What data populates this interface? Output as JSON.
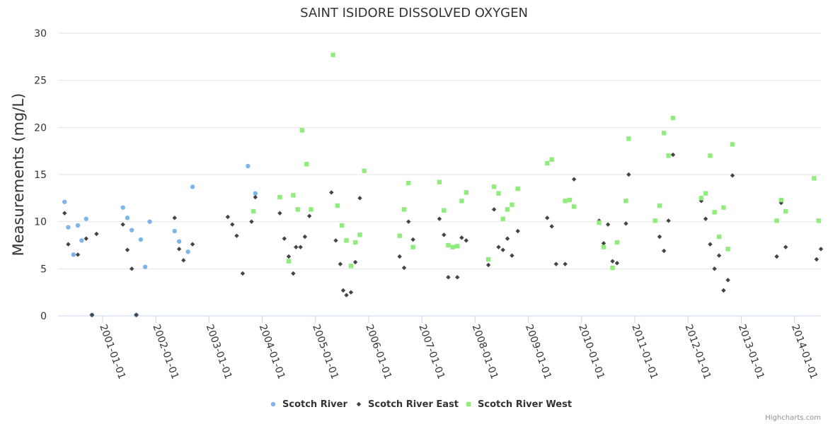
{
  "chart_data": {
    "type": "scatter",
    "title": "SAINT ISIDORE DISSOLVED OXYGEN",
    "ylabel": "Measurements (mg/L)",
    "xlabel": "",
    "ylim": [
      0,
      30
    ],
    "yticks": [
      "0",
      "5",
      "10",
      "15",
      "20",
      "25",
      "30"
    ],
    "xlim": [
      "2000-03-01",
      "2014-07-01"
    ],
    "xticks": [
      "2001-01-01",
      "2002-01-01",
      "2003-01-01",
      "2004-01-01",
      "2005-01-01",
      "2006-01-01",
      "2007-01-01",
      "2008-01-01",
      "2009-01-01",
      "2010-01-01",
      "2011-01-01",
      "2012-01-01",
      "2013-01-01",
      "2014-01-01"
    ],
    "grid": "horizontal",
    "legend": "bottom-center",
    "series": [
      {
        "name": "Scotch River",
        "color": "#7cb5ec",
        "marker": "circle",
        "points": [
          [
            "2000-04-15",
            12.1
          ],
          [
            "2000-05-10",
            9.4
          ],
          [
            "2000-06-15",
            6.5
          ],
          [
            "2000-07-15",
            9.6
          ],
          [
            "2000-08-10",
            8.0
          ],
          [
            "2000-09-10",
            10.3
          ],
          [
            "2000-10-20",
            0.1
          ],
          [
            "2001-05-20",
            11.5
          ],
          [
            "2001-06-20",
            10.4
          ],
          [
            "2001-07-20",
            9.1
          ],
          [
            "2001-08-20",
            0.1
          ],
          [
            "2001-09-20",
            8.1
          ],
          [
            "2001-10-20",
            5.2
          ],
          [
            "2001-11-20",
            10.0
          ],
          [
            "2002-05-10",
            9.0
          ],
          [
            "2002-06-10",
            7.9
          ],
          [
            "2002-08-10",
            6.8
          ],
          [
            "2002-09-10",
            13.7
          ],
          [
            "2003-09-25",
            15.9
          ],
          [
            "2003-11-15",
            13.0
          ]
        ]
      },
      {
        "name": "Scotch River East",
        "color": "#434348",
        "marker": "diamond",
        "points": [
          [
            "2000-04-15",
            10.9
          ],
          [
            "2000-05-10",
            7.6
          ],
          [
            "2000-07-15",
            6.5
          ],
          [
            "2000-09-10",
            8.2
          ],
          [
            "2000-10-20",
            0.1
          ],
          [
            "2000-11-20",
            8.7
          ],
          [
            "2001-05-20",
            9.7
          ],
          [
            "2001-06-20",
            7.0
          ],
          [
            "2001-07-20",
            5.0
          ],
          [
            "2001-08-20",
            0.1
          ],
          [
            "2002-05-10",
            10.4
          ],
          [
            "2002-06-10",
            7.1
          ],
          [
            "2002-07-10",
            5.9
          ],
          [
            "2002-09-10",
            7.6
          ],
          [
            "2003-05-10",
            10.5
          ],
          [
            "2003-06-10",
            9.7
          ],
          [
            "2003-07-10",
            8.5
          ],
          [
            "2003-08-20",
            4.5
          ],
          [
            "2003-10-20",
            10.0
          ],
          [
            "2003-11-15",
            12.6
          ],
          [
            "2004-05-01",
            10.9
          ],
          [
            "2004-06-01",
            8.2
          ],
          [
            "2004-07-01",
            6.3
          ],
          [
            "2004-08-01",
            4.5
          ],
          [
            "2004-08-20",
            7.3
          ],
          [
            "2004-09-20",
            7.3
          ],
          [
            "2004-10-20",
            8.4
          ],
          [
            "2004-11-20",
            10.6
          ],
          [
            "2005-04-20",
            13.1
          ],
          [
            "2005-05-20",
            8.0
          ],
          [
            "2005-06-20",
            5.5
          ],
          [
            "2005-07-10",
            2.7
          ],
          [
            "2005-08-01",
            2.2
          ],
          [
            "2005-09-01",
            2.5
          ],
          [
            "2005-10-01",
            5.7
          ],
          [
            "2005-11-01",
            12.5
          ],
          [
            "2006-08-01",
            6.3
          ],
          [
            "2006-09-01",
            5.1
          ],
          [
            "2006-10-01",
            10.0
          ],
          [
            "2006-11-01",
            8.1
          ],
          [
            "2007-05-01",
            10.3
          ],
          [
            "2007-06-01",
            8.6
          ],
          [
            "2007-07-01",
            4.1
          ],
          [
            "2007-09-01",
            4.1
          ],
          [
            "2007-10-01",
            8.3
          ],
          [
            "2007-11-01",
            8.0
          ],
          [
            "2008-04-01",
            5.4
          ],
          [
            "2008-05-10",
            11.3
          ],
          [
            "2008-06-10",
            7.3
          ],
          [
            "2008-07-10",
            7.0
          ],
          [
            "2008-08-10",
            8.2
          ],
          [
            "2008-09-10",
            6.4
          ],
          [
            "2008-10-20",
            9.0
          ],
          [
            "2009-05-10",
            10.4
          ],
          [
            "2009-06-10",
            9.5
          ],
          [
            "2009-07-10",
            5.5
          ],
          [
            "2009-09-10",
            5.5
          ],
          [
            "2009-11-10",
            14.5
          ],
          [
            "2010-05-01",
            10.1
          ],
          [
            "2010-06-01",
            7.7
          ],
          [
            "2010-07-01",
            9.7
          ],
          [
            "2010-08-01",
            5.8
          ],
          [
            "2010-09-01",
            5.6
          ],
          [
            "2010-11-01",
            9.8
          ],
          [
            "2010-11-20",
            15.0
          ],
          [
            "2011-06-20",
            8.4
          ],
          [
            "2011-07-20",
            6.9
          ],
          [
            "2011-08-20",
            10.1
          ],
          [
            "2011-09-20",
            17.1
          ],
          [
            "2012-04-01",
            12.2
          ],
          [
            "2012-05-01",
            10.3
          ],
          [
            "2012-06-01",
            7.6
          ],
          [
            "2012-07-01",
            5.0
          ],
          [
            "2012-08-01",
            6.4
          ],
          [
            "2012-09-01",
            2.7
          ],
          [
            "2012-10-01",
            3.8
          ],
          [
            "2012-11-01",
            14.9
          ],
          [
            "2013-09-01",
            6.3
          ],
          [
            "2013-10-01",
            12.0
          ],
          [
            "2013-11-01",
            7.3
          ],
          [
            "2014-06-01",
            6.0
          ],
          [
            "2014-07-01",
            7.1
          ]
        ]
      },
      {
        "name": "Scotch River West",
        "color": "#90ed7d",
        "marker": "square",
        "points": [
          [
            "2003-11-01",
            11.1
          ],
          [
            "2004-05-01",
            12.6
          ],
          [
            "2004-07-01",
            5.8
          ],
          [
            "2004-08-01",
            12.8
          ],
          [
            "2004-09-01",
            11.3
          ],
          [
            "2004-10-01",
            19.7
          ],
          [
            "2004-11-01",
            16.1
          ],
          [
            "2004-12-01",
            11.3
          ],
          [
            "2005-05-01",
            27.7
          ],
          [
            "2005-06-01",
            11.7
          ],
          [
            "2005-07-01",
            9.6
          ],
          [
            "2005-08-01",
            8.0
          ],
          [
            "2005-09-01",
            5.3
          ],
          [
            "2005-10-01",
            7.8
          ],
          [
            "2005-11-01",
            8.6
          ],
          [
            "2005-12-01",
            15.4
          ],
          [
            "2006-08-01",
            8.5
          ],
          [
            "2006-09-01",
            11.3
          ],
          [
            "2006-10-01",
            14.1
          ],
          [
            "2006-11-01",
            7.3
          ],
          [
            "2007-05-01",
            14.2
          ],
          [
            "2007-06-01",
            11.2
          ],
          [
            "2007-07-01",
            7.5
          ],
          [
            "2007-08-01",
            7.3
          ],
          [
            "2007-09-01",
            7.4
          ],
          [
            "2007-10-01",
            12.2
          ],
          [
            "2007-11-01",
            13.1
          ],
          [
            "2008-04-01",
            6.0
          ],
          [
            "2008-05-10",
            13.7
          ],
          [
            "2008-06-10",
            13.0
          ],
          [
            "2008-07-10",
            10.3
          ],
          [
            "2008-08-10",
            11.3
          ],
          [
            "2008-09-10",
            11.8
          ],
          [
            "2008-10-20",
            13.5
          ],
          [
            "2009-05-10",
            16.2
          ],
          [
            "2009-06-10",
            16.6
          ],
          [
            "2009-09-10",
            12.2
          ],
          [
            "2009-10-10",
            12.3
          ],
          [
            "2009-11-10",
            11.6
          ],
          [
            "2010-05-01",
            9.9
          ],
          [
            "2010-06-01",
            7.3
          ],
          [
            "2010-08-01",
            5.1
          ],
          [
            "2010-09-01",
            7.8
          ],
          [
            "2010-11-01",
            12.2
          ],
          [
            "2010-11-20",
            18.8
          ],
          [
            "2011-05-20",
            10.1
          ],
          [
            "2011-06-20",
            11.7
          ],
          [
            "2011-07-20",
            19.4
          ],
          [
            "2011-08-20",
            17.0
          ],
          [
            "2011-09-20",
            21.0
          ],
          [
            "2012-04-01",
            12.5
          ],
          [
            "2012-05-01",
            13.0
          ],
          [
            "2012-06-01",
            17.0
          ],
          [
            "2012-07-01",
            11.0
          ],
          [
            "2012-08-01",
            8.4
          ],
          [
            "2012-09-01",
            11.5
          ],
          [
            "2012-10-01",
            7.1
          ],
          [
            "2012-11-01",
            18.2
          ],
          [
            "2013-09-01",
            10.1
          ],
          [
            "2013-10-01",
            12.3
          ],
          [
            "2013-11-01",
            11.1
          ],
          [
            "2014-05-15",
            14.6
          ],
          [
            "2014-06-15",
            10.1
          ]
        ]
      }
    ]
  },
  "credit": "Highcharts.com"
}
